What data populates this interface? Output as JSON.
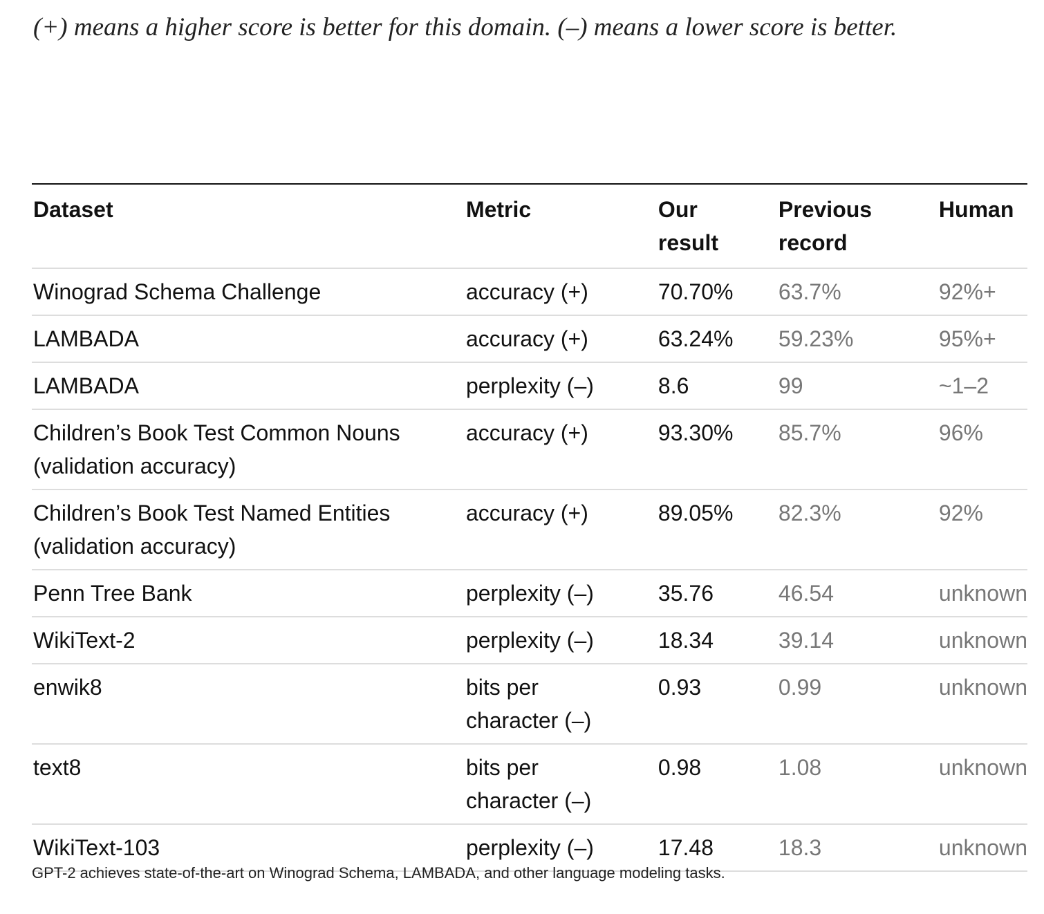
{
  "note": "(+) means a higher score is better for this domain. (–) means a lower score is better.",
  "table": {
    "headers": [
      "Dataset",
      "Metric",
      "Our result",
      "Previous record",
      "Human"
    ],
    "rows": [
      [
        "Winograd Schema Challenge",
        "accuracy (+)",
        "70.70%",
        "63.7%",
        "92%+"
      ],
      [
        "LAMBADA",
        "accuracy (+)",
        "63.24%",
        "59.23%",
        "95%+"
      ],
      [
        "LAMBADA",
        "perplexity (–)",
        "8.6",
        "99",
        "~1–2"
      ],
      [
        "Children’s Book Test Common Nouns (validation accuracy)",
        "accuracy (+)",
        "93.30%",
        "85.7%",
        "96%"
      ],
      [
        "Children’s Book Test Named Entities (validation accuracy)",
        "accuracy (+)",
        "89.05%",
        "82.3%",
        "92%"
      ],
      [
        "Penn Tree Bank",
        "perplexity (–)",
        "35.76",
        "46.54",
        "unknown"
      ],
      [
        "WikiText-2",
        "perplexity (–)",
        "18.34",
        "39.14",
        "unknown"
      ],
      [
        "enwik8",
        "bits per character (–)",
        "0.93",
        "0.99",
        "unknown"
      ],
      [
        "text8",
        "bits per character (–)",
        "0.98",
        "1.08",
        "unknown"
      ],
      [
        "WikiText-103",
        "perplexity (–)",
        "17.48",
        "18.3",
        "unknown"
      ]
    ]
  },
  "caption": "GPT-2 achieves state-of-the-art on Winograd Schema, LAMBADA, and other language modeling tasks."
}
